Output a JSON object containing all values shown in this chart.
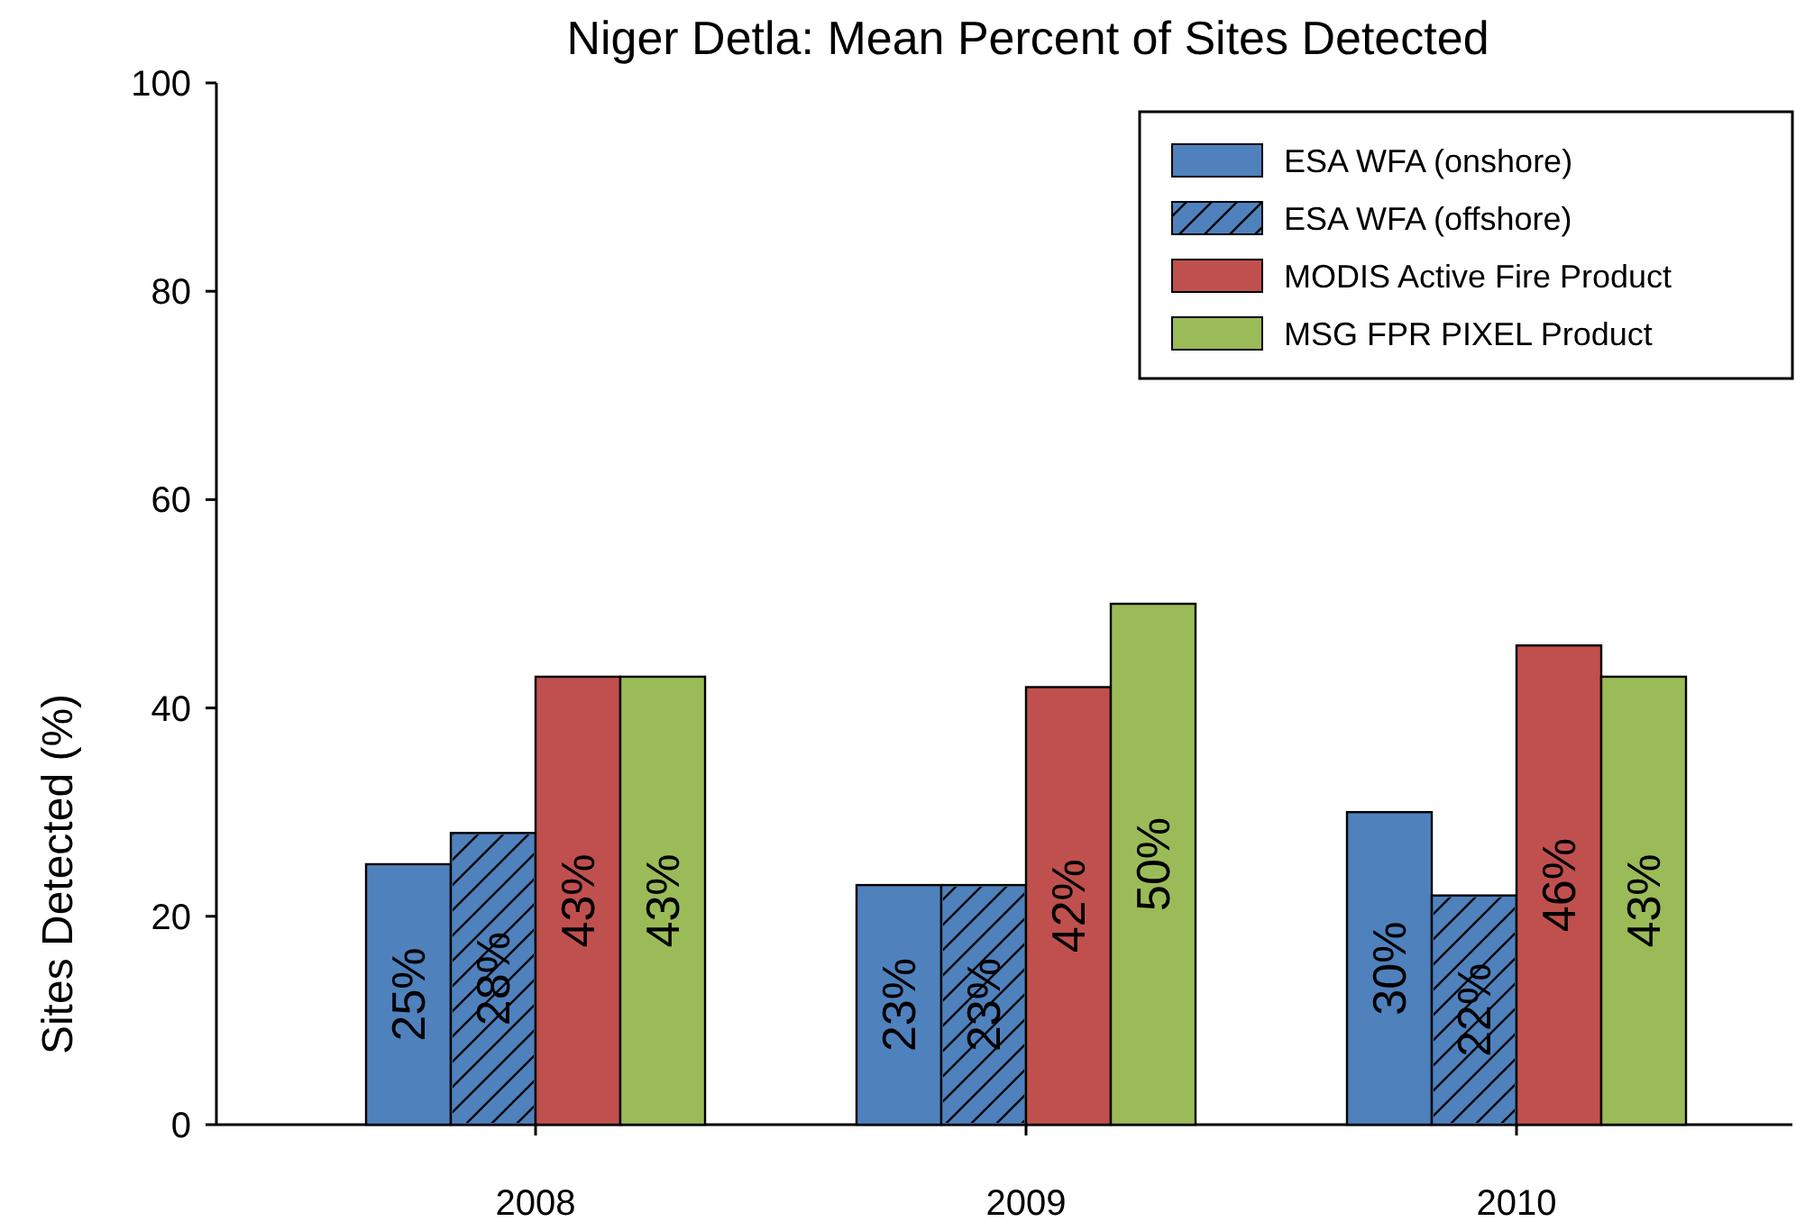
{
  "chart_data": {
    "type": "bar",
    "title": "Niger Detla: Mean Percent of Sites Detected",
    "ylabel": "Sites Detected (%)",
    "categories": [
      "2008",
      "2009",
      "2010"
    ],
    "series": [
      {
        "name": "ESA WFA (onshore)",
        "color": "#4f81bd",
        "values": [
          25,
          23,
          30
        ],
        "value_labels": [
          "25%",
          "23%",
          "30%"
        ]
      },
      {
        "name": "ESA WFA (offshore)",
        "color": "#4f81bd",
        "values": [
          28,
          23,
          22
        ],
        "value_labels": [
          "28%",
          "23%",
          "22%"
        ]
      },
      {
        "name": "MODIS Active Fire Product",
        "color": "#c0504d",
        "values": [
          43,
          42,
          46
        ],
        "value_labels": [
          "43%",
          "42%",
          "46%"
        ]
      },
      {
        "name": "MSG FPR PIXEL Product",
        "color": "#9bbb59",
        "values": [
          43,
          50,
          43
        ],
        "value_labels": [
          "43%",
          "50%",
          "43%"
        ]
      }
    ],
    "ylim": [
      0,
      100
    ],
    "yticks": [
      0,
      20,
      40,
      60,
      80,
      100
    ],
    "legend": "top right",
    "grid": false
  }
}
